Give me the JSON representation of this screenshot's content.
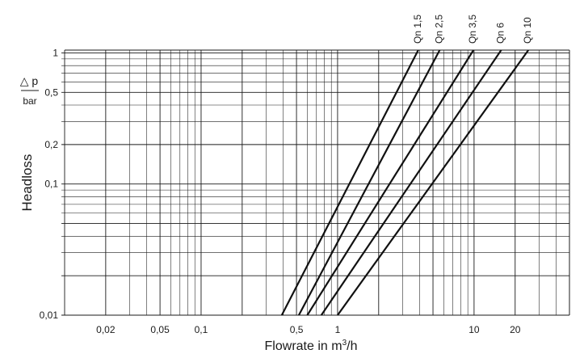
{
  "chart_data": {
    "type": "line",
    "xscale": "log",
    "yscale": "log",
    "xlim": [
      0.01,
      50
    ],
    "ylim": [
      0.01,
      1.05
    ],
    "grid": true,
    "xlabel_prefix": "Flowrate in m",
    "xlabel_sup": "3",
    "xlabel_suffix": "/h",
    "ylabel": "Headloss",
    "ylabel_symbol": "△ p",
    "ylabel_unit": "bar",
    "x_ticks": [
      {
        "value": 0.02,
        "label": "0,02"
      },
      {
        "value": 0.05,
        "label": "0,05"
      },
      {
        "value": 0.1,
        "label": "0,1"
      },
      {
        "value": 0.5,
        "label": "0,5"
      },
      {
        "value": 1,
        "label": "1"
      },
      {
        "value": 10,
        "label": "10"
      },
      {
        "value": 20,
        "label": "20"
      }
    ],
    "y_ticks": [
      {
        "value": 0.01,
        "label": "0,01"
      },
      {
        "value": 0.1,
        "label": "0,1"
      },
      {
        "value": 0.2,
        "label": "0,2"
      },
      {
        "value": 0.5,
        "label": "0,5"
      },
      {
        "value": 1,
        "label": "1"
      }
    ],
    "series": [
      {
        "name": "Qn 1,5",
        "x": [
          0.39,
          3.9
        ],
        "y": [
          0.01,
          1.05
        ]
      },
      {
        "name": "Qn 2,5",
        "x": [
          0.52,
          5.6
        ],
        "y": [
          0.01,
          1.05
        ]
      },
      {
        "name": "Qn 3,5",
        "x": [
          0.6,
          9.9
        ],
        "y": [
          0.01,
          1.05
        ]
      },
      {
        "name": "Qn 6",
        "x": [
          0.76,
          15.8
        ],
        "y": [
          0.01,
          1.05
        ]
      },
      {
        "name": "Qn 10",
        "x": [
          1.0,
          25.0
        ],
        "y": [
          0.01,
          1.05
        ]
      }
    ]
  }
}
